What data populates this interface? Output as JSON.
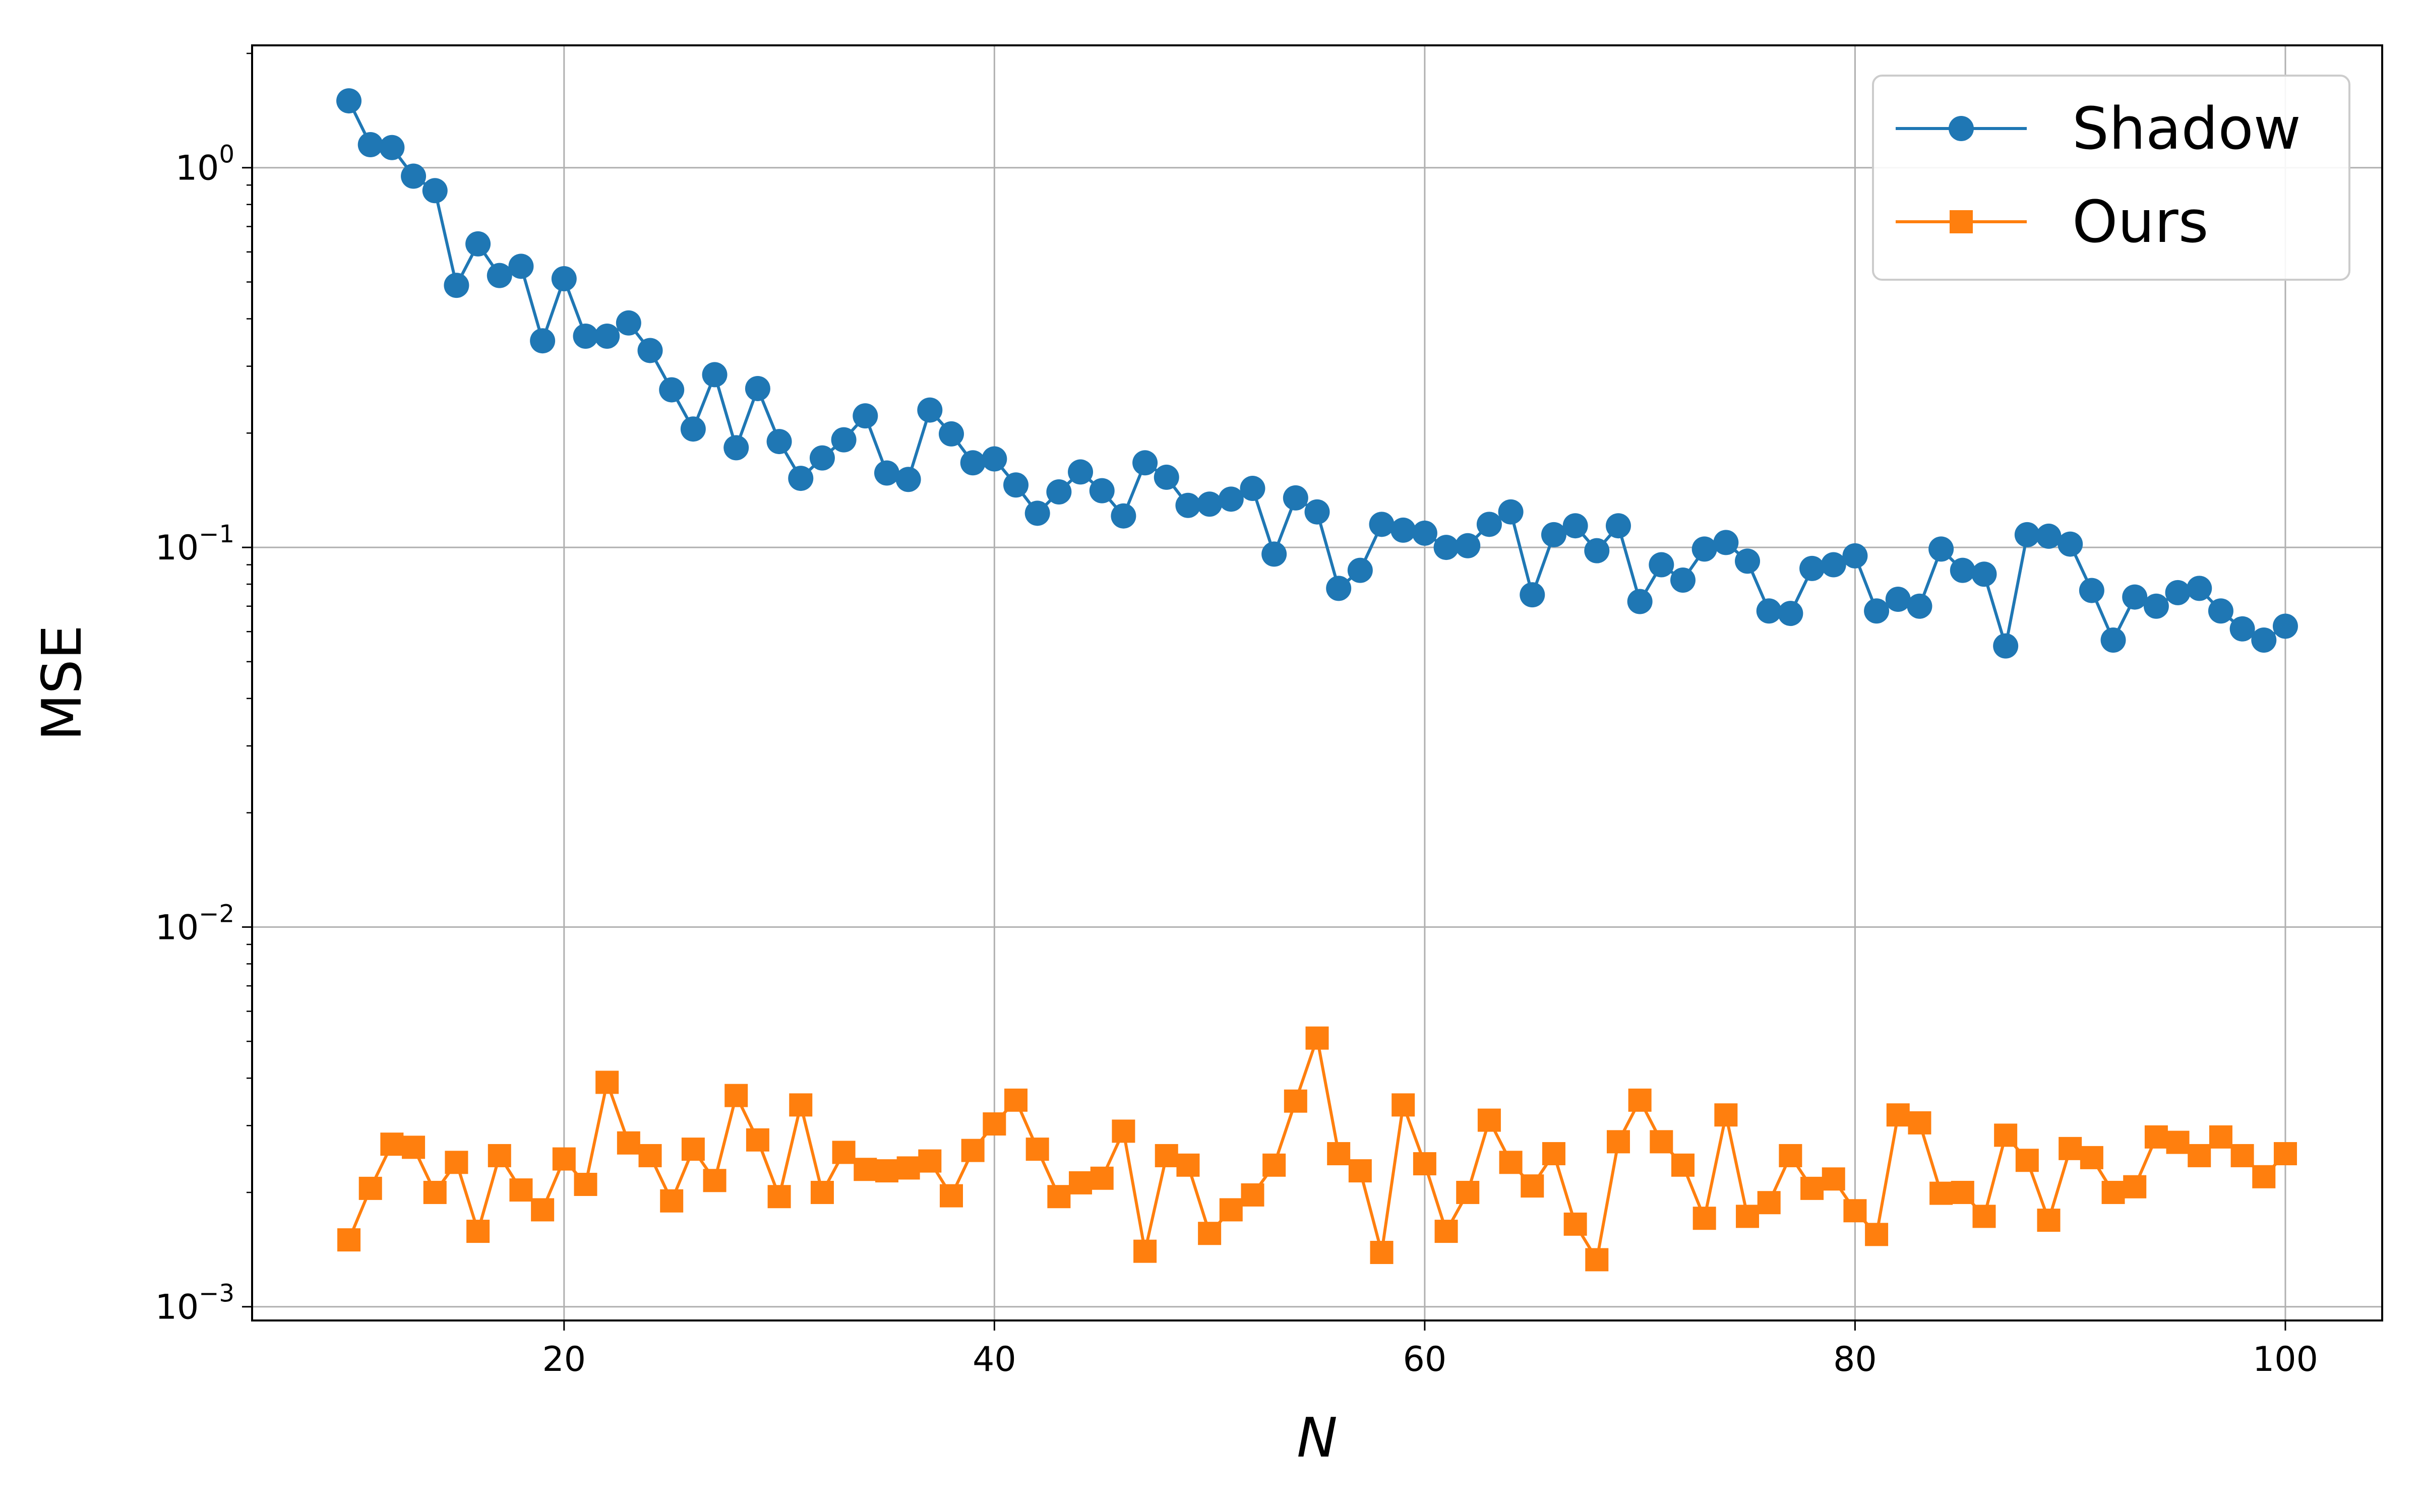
{
  "chart_data": {
    "type": "line",
    "xlabel": "N",
    "ylabel": "MSE",
    "yscale": "log",
    "xlim": [
      5.5,
      104.5
    ],
    "ylim": [
      0.00092,
      2.1
    ],
    "x_ticks": [
      20,
      40,
      60,
      80,
      100
    ],
    "y_ticks": [
      {
        "value": 0.001,
        "base": "10",
        "exp": "−3"
      },
      {
        "value": 0.01,
        "base": "10",
        "exp": "−2"
      },
      {
        "value": 0.1,
        "base": "10",
        "exp": "−1"
      },
      {
        "value": 1,
        "base": "10",
        "exp": "0"
      }
    ],
    "grid": true,
    "legend_position": "top-right",
    "x": [
      10,
      11,
      12,
      13,
      14,
      15,
      16,
      17,
      18,
      19,
      20,
      21,
      22,
      23,
      24,
      25,
      26,
      27,
      28,
      29,
      30,
      31,
      32,
      33,
      34,
      35,
      36,
      37,
      38,
      39,
      40,
      41,
      42,
      43,
      44,
      45,
      46,
      47,
      48,
      49,
      50,
      51,
      52,
      53,
      54,
      55,
      56,
      57,
      58,
      59,
      60,
      61,
      62,
      63,
      64,
      65,
      66,
      67,
      68,
      69,
      70,
      71,
      72,
      73,
      74,
      75,
      76,
      77,
      78,
      79,
      80,
      81,
      82,
      83,
      84,
      85,
      86,
      87,
      88,
      89,
      90,
      91,
      92,
      93,
      94,
      95,
      96,
      97,
      98,
      99,
      100
    ],
    "series": [
      {
        "name": "Shadow",
        "color": "#1f77b4",
        "marker": "circle",
        "values": [
          1.5,
          1.15,
          1.13,
          0.95,
          0.87,
          0.49,
          0.63,
          0.52,
          0.55,
          0.35,
          0.51,
          0.36,
          0.36,
          0.39,
          0.33,
          0.26,
          0.205,
          0.285,
          0.183,
          0.262,
          0.19,
          0.152,
          0.172,
          0.192,
          0.222,
          0.157,
          0.151,
          0.23,
          0.199,
          0.167,
          0.171,
          0.146,
          0.123,
          0.14,
          0.158,
          0.141,
          0.121,
          0.167,
          0.153,
          0.129,
          0.13,
          0.134,
          0.143,
          0.096,
          0.135,
          0.124,
          0.078,
          0.087,
          0.115,
          0.111,
          0.109,
          0.1,
          0.101,
          0.115,
          0.124,
          0.075,
          0.108,
          0.114,
          0.098,
          0.114,
          0.072,
          0.09,
          0.082,
          0.099,
          0.103,
          0.092,
          0.068,
          0.067,
          0.088,
          0.09,
          0.095,
          0.068,
          0.073,
          0.07,
          0.099,
          0.087,
          0.085,
          0.055,
          0.108,
          0.107,
          0.102,
          0.077,
          0.057,
          0.074,
          0.07,
          0.076,
          0.078,
          0.068,
          0.061,
          0.057,
          0.062
        ]
      },
      {
        "name": "Ours",
        "color": "#ff7f0e",
        "marker": "square",
        "values": [
          0.0015,
          0.00205,
          0.00268,
          0.00263,
          0.002,
          0.0024,
          0.00158,
          0.0025,
          0.00203,
          0.0018,
          0.00245,
          0.0021,
          0.0039,
          0.0027,
          0.0025,
          0.0019,
          0.0026,
          0.00215,
          0.0036,
          0.00275,
          0.00195,
          0.0034,
          0.002,
          0.00255,
          0.0023,
          0.00228,
          0.00232,
          0.00242,
          0.00196,
          0.00258,
          0.00303,
          0.0035,
          0.0026,
          0.00195,
          0.00212,
          0.00218,
          0.0029,
          0.0014,
          0.0025,
          0.00236,
          0.00156,
          0.0018,
          0.00197,
          0.00236,
          0.00348,
          0.0051,
          0.00253,
          0.00228,
          0.00139,
          0.0034,
          0.00238,
          0.00158,
          0.002,
          0.0031,
          0.0024,
          0.00208,
          0.00253,
          0.00165,
          0.00133,
          0.00272,
          0.0035,
          0.00272,
          0.00236,
          0.00171,
          0.0032,
          0.00173,
          0.00188,
          0.0025,
          0.00205,
          0.00217,
          0.00179,
          0.00155,
          0.0032,
          0.00305,
          0.00199,
          0.002,
          0.00173,
          0.00283,
          0.00243,
          0.00169,
          0.00261,
          0.00247,
          0.002,
          0.00207,
          0.0028,
          0.00271,
          0.0025,
          0.0028,
          0.0025,
          0.0022,
          0.00253
        ]
      }
    ]
  }
}
